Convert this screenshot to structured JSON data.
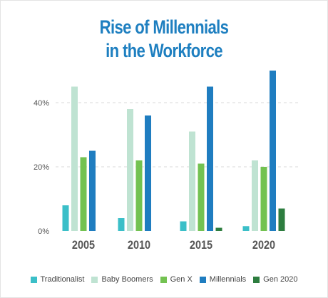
{
  "title_lines": [
    "Rise of Millennials",
    "in the Workforce"
  ],
  "colors": {
    "Traditionalist": "#3bbfc8",
    "Baby Boomers": "#bfe3d2",
    "Gen X": "#73c251",
    "Millennials": "#1f7dc0",
    "Gen 2020": "#2d7d3f",
    "title": "#1e7fc0",
    "grid": "#d9d9d9"
  },
  "chart_data": {
    "type": "bar",
    "title": "Rise of Millennials in the Workforce",
    "categories": [
      "2005",
      "2010",
      "2015",
      "2020"
    ],
    "y_ticks": [
      "0%",
      "20%",
      "40%"
    ],
    "ylim": [
      0,
      50
    ],
    "grid": true,
    "legend_position": "bottom",
    "series": [
      {
        "name": "Traditionalist",
        "values": [
          8,
          4,
          3,
          1.5
        ]
      },
      {
        "name": "Baby Boomers",
        "values": [
          45,
          38,
          31,
          22
        ]
      },
      {
        "name": "Gen X",
        "values": [
          23,
          22,
          21,
          20
        ]
      },
      {
        "name": "Millennials",
        "values": [
          25,
          36,
          45,
          50
        ]
      },
      {
        "name": "Gen 2020",
        "values": [
          0,
          0,
          1,
          7
        ]
      }
    ]
  }
}
